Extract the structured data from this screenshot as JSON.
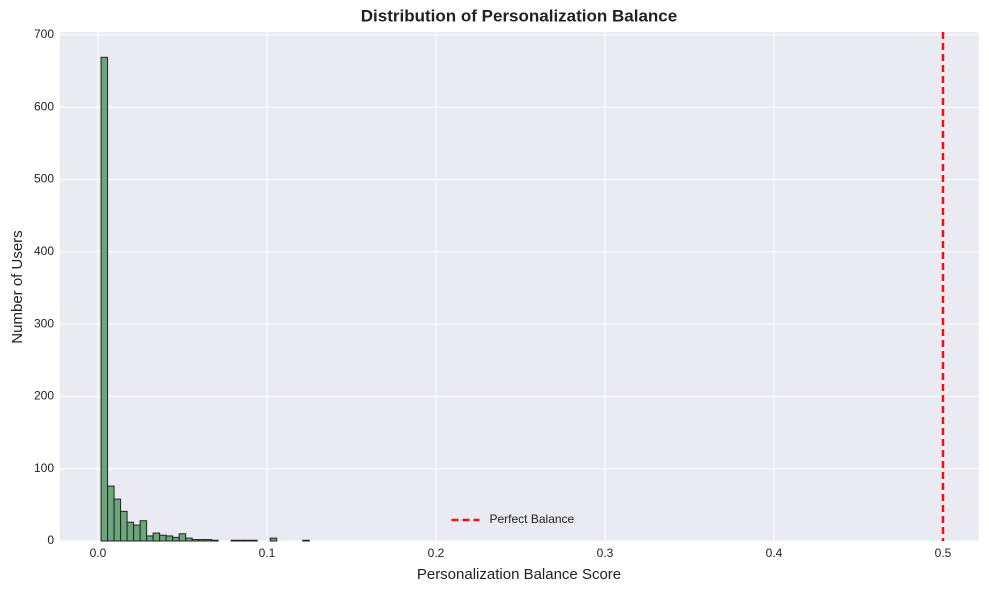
{
  "chart_data": {
    "type": "histogram",
    "title": "Distribution of Personalization Balance",
    "x_label": "Personalization Balance Score",
    "y_label": "Number of Users",
    "bins": [
      0.0018,
      0.00565,
      0.0095,
      0.01335,
      0.0172,
      0.02105,
      0.0249,
      0.02875,
      0.0326,
      0.03645,
      0.0403,
      0.04415,
      0.048,
      0.05185,
      0.0557,
      0.05955,
      0.0634,
      0.06725,
      0.0711,
      0.07495,
      0.0788,
      0.08265,
      0.0865,
      0.09035,
      0.0942,
      0.09805,
      0.1019,
      0.10575,
      0.1096,
      0.11345,
      0.1173,
      0.12115,
      0.125
    ],
    "counts": [
      669,
      76,
      58,
      41,
      26,
      22,
      28,
      7,
      11,
      8,
      7,
      5,
      10,
      4,
      2,
      2,
      2,
      1,
      0,
      0,
      1,
      1,
      1,
      1,
      0,
      0,
      4,
      0,
      0,
      0,
      0,
      1
    ],
    "color": "#5e9e6e",
    "vline": {
      "x": 0.5,
      "label": "Perfect Balance",
      "color": "#ee1111"
    },
    "xlim": [
      -0.0225,
      0.5213
    ],
    "ylim": [
      0,
      704
    ],
    "xticks": [
      {
        "value": 0,
        "label": "0.0"
      },
      0.1,
      0.2,
      0.3,
      0.4,
      0.5
    ],
    "yticks": [
      0,
      100,
      200,
      300,
      400,
      500,
      600,
      700
    ],
    "grid": true,
    "legend": "lower center"
  }
}
